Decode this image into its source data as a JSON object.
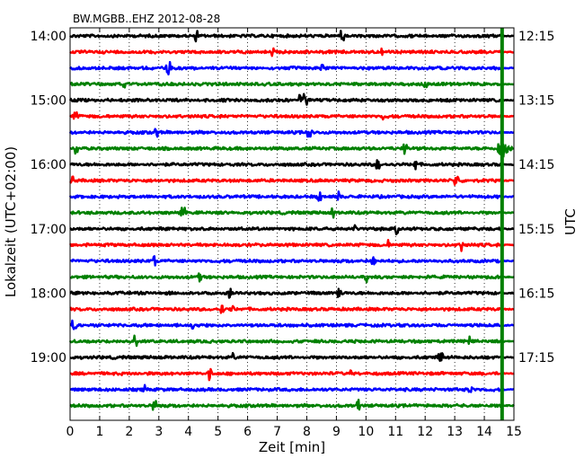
{
  "chart_data": {
    "type": "line",
    "title": "BW.MGBB..EHZ 2012-08-28",
    "xlabel": "Zeit  [min]",
    "ylabel_left": "Lokalzeit (UTC+02:00)",
    "ylabel_right": "UTC",
    "xlim": [
      0,
      15
    ],
    "x_ticks": [
      "0",
      "1",
      "2",
      "3",
      "4",
      "5",
      "6",
      "7",
      "8",
      "9",
      "10",
      "11",
      "12",
      "13",
      "14",
      "15"
    ],
    "left_ticks": [
      "14:00",
      "15:00",
      "16:00",
      "17:00",
      "18:00",
      "19:00"
    ],
    "right_ticks": [
      "12:15",
      "13:15",
      "14:15",
      "15:15",
      "16:15",
      "17:15"
    ],
    "grid": "vertical-dotted",
    "trace_colors": [
      "#000000",
      "#ff0000",
      "#0000ff",
      "#008000"
    ],
    "trace_count": 24,
    "minutes_per_trace": 15,
    "data_end_minute": 14.6,
    "highlight_color": "#008000"
  }
}
